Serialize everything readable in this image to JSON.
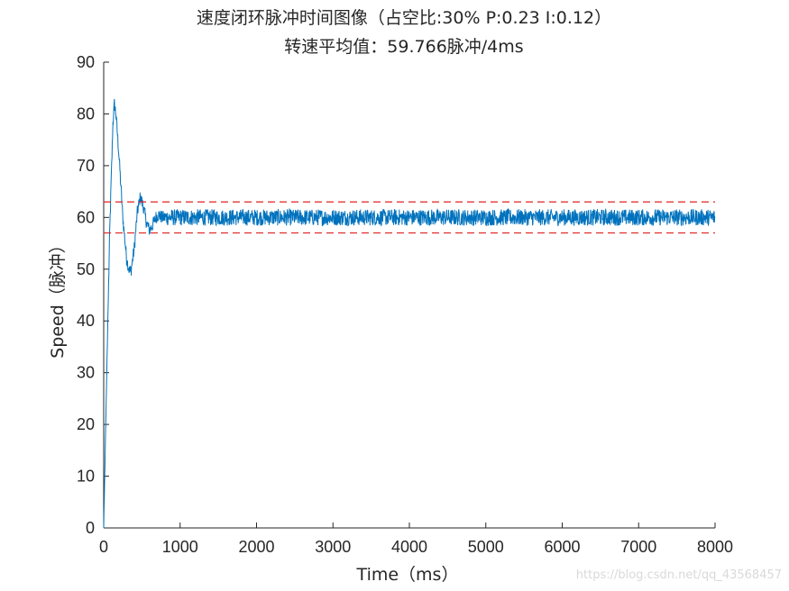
{
  "chart_data": {
    "type": "line",
    "title": "速度闭环脉冲时间图像（占空比:30%  P:0.23  I:0.12）",
    "subtitle": "转速平均值：59.766脉冲/4ms",
    "xlabel": "Time（ms）",
    "ylabel": "Speed（脉冲）",
    "xlim": [
      0,
      8000
    ],
    "ylim": [
      0,
      90
    ],
    "xticks": [
      "0",
      "1000",
      "2000",
      "3000",
      "4000",
      "5000",
      "6000",
      "7000",
      "8000"
    ],
    "yticks": [
      "0",
      "10",
      "20",
      "30",
      "40",
      "50",
      "60",
      "70",
      "80",
      "90"
    ],
    "grid": false,
    "series": [
      {
        "color": "#0072bd",
        "envelope_x": [
          0,
          40,
          80,
          120,
          140,
          160,
          200,
          250,
          300,
          340,
          360,
          400,
          440,
          480,
          520,
          560,
          600,
          640,
          680,
          720,
          760,
          800,
          1000,
          8000
        ],
        "envelope_y": [
          0,
          30,
          58,
          78,
          82,
          80,
          72,
          60,
          52,
          49.5,
          50,
          54,
          61,
          64,
          62,
          59,
          57.5,
          58.5,
          60,
          60.5,
          60,
          60,
          60,
          60
        ],
        "noise_amplitude": 1.6
      }
    ],
    "reference_lines": [
      {
        "y": 63,
        "color": "#e02020",
        "style": "dashed"
      },
      {
        "y": 57,
        "color": "#e02020",
        "style": "dashed"
      }
    ]
  },
  "watermark": "https://blog.csdn.net/qq_43568457"
}
